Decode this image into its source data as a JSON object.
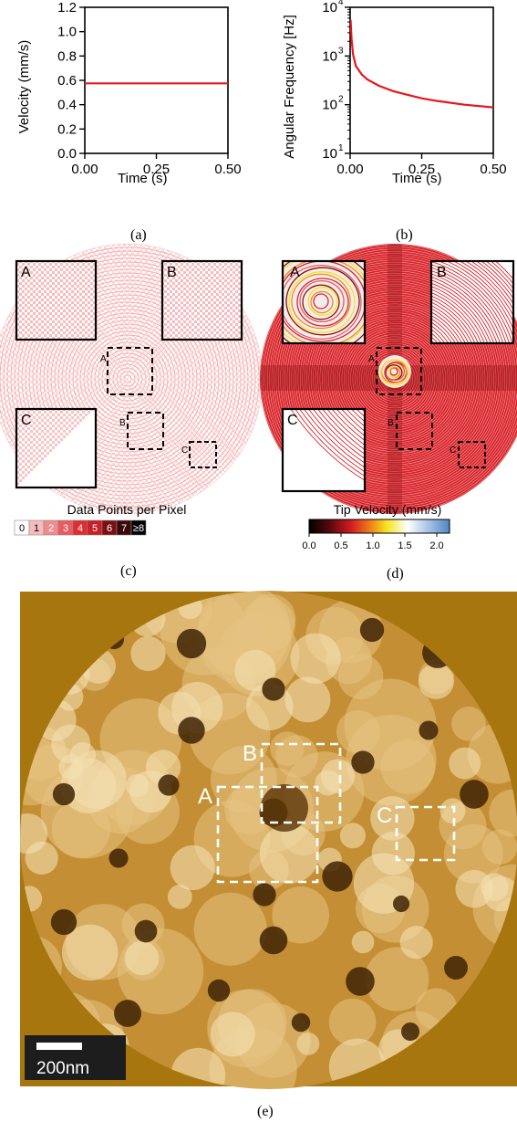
{
  "chart_data": [
    {
      "type": "line",
      "panel": "(a)",
      "ylabel": "Velocity (mm/s)",
      "xlabel": "Time (s)",
      "xlim": [
        0,
        0.5
      ],
      "ylim": [
        0,
        1.2
      ],
      "xticks": [
        "0.00",
        "0.25",
        "0.50"
      ],
      "yticks": [
        "0.0",
        "0.2",
        "0.4",
        "0.6",
        "0.8",
        "1.0",
        "1.2"
      ],
      "series": [
        {
          "color": "#e8161e",
          "x": [
            0,
            0.1,
            0.2,
            0.3,
            0.4,
            0.5
          ],
          "y": [
            0.575,
            0.575,
            0.575,
            0.575,
            0.575,
            0.575
          ]
        }
      ]
    },
    {
      "type": "line",
      "panel": "(b)",
      "ylabel": "Angular Frequency [Hz]",
      "xlabel": "Time (s)",
      "yscale": "log",
      "xlim": [
        0,
        0.5
      ],
      "ylim": [
        10,
        10000
      ],
      "xticks": [
        "0.00",
        "0.25",
        "0.50"
      ],
      "yticks": [
        "10^1",
        "10^2",
        "10^3",
        "10^4"
      ],
      "series": [
        {
          "color": "#e8161e",
          "x": [
            0.0015,
            0.005,
            0.01,
            0.02,
            0.04,
            0.06,
            0.1,
            0.15,
            0.2,
            0.25,
            0.3,
            0.4,
            0.5
          ],
          "y": [
            5500,
            2200,
            1100,
            620,
            420,
            330,
            245,
            190,
            160,
            135,
            120,
            100,
            88
          ]
        }
      ]
    },
    {
      "type": "heatmap",
      "panel": "(c)",
      "colorbar_title": "Data Points per Pixel",
      "colorbar_labels": [
        "0",
        "1",
        "2",
        "3",
        "4",
        "5",
        "6",
        "7",
        "≥8"
      ],
      "colorbar_colors": [
        "#ffffff",
        "#f6bcbd",
        "#ef8c8e",
        "#e65c60",
        "#de2d33",
        "#c81e25",
        "#7a1014",
        "#3a0809",
        "#000000"
      ],
      "insets": [
        "A",
        "B",
        "C"
      ]
    },
    {
      "type": "heatmap",
      "panel": "(d)",
      "colorbar_title": "Tip Velocity (mm/s)",
      "colorbar_range": [
        0,
        2.2
      ],
      "colorbar_ticks": [
        "0.0",
        "0.5",
        "1.0",
        "1.5",
        "2.0"
      ],
      "insets": [
        "A",
        "B",
        "C"
      ]
    }
  ],
  "figure": {
    "captions": [
      "(a)",
      "(b)",
      "(c)",
      "(d)",
      "(e)"
    ],
    "panel_e": {
      "regions": [
        "A",
        "B",
        "C"
      ],
      "scale_bar": "200nm",
      "background_color": "#a8760e"
    }
  }
}
